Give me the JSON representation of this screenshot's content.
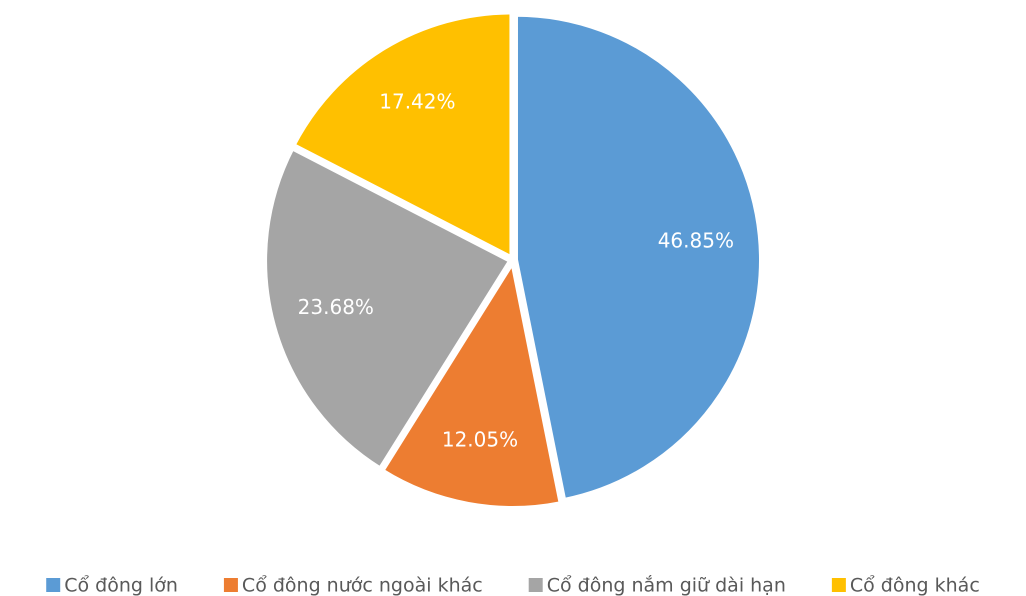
{
  "chart_data": {
    "type": "pie",
    "categories": [
      "Cổ đông lớn",
      "Cổ đông nước ngoài khác",
      "Cổ đông nắm giữ dài hạn",
      "Cổ đông khác"
    ],
    "values": [
      46.85,
      12.05,
      23.68,
      17.42
    ],
    "value_labels": [
      "46.85%",
      "12.05%",
      "23.68%",
      "17.42%"
    ],
    "colors": [
      "#5b9bd5",
      "#ed7d31",
      "#a5a5a5",
      "#ffc000"
    ],
    "legend": "bottom"
  }
}
